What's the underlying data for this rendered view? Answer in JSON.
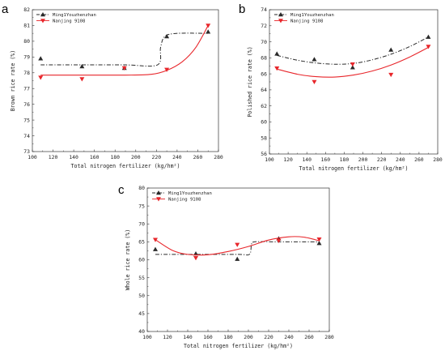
{
  "panels": [
    {
      "letter": "a",
      "xlabel": "Total nitrogen fertilizer (kg/hm²)",
      "ylabel": "Brown rice rate (%)",
      "legend": [
        "Ming1Youzhenzhan",
        "Nanjing 9108"
      ],
      "xticks": [
        "100",
        "120",
        "140",
        "160",
        "180",
        "200",
        "220",
        "240",
        "260",
        "280"
      ],
      "yticks": [
        "73",
        "74",
        "75",
        "76",
        "77",
        "78",
        "79",
        "80",
        "81",
        "82"
      ]
    },
    {
      "letter": "b",
      "xlabel": "Total nitrogen fertilizer (kg/hm²)",
      "ylabel": "Polished rice rate (%)",
      "legend": [
        "Ming1Youzhenzhan",
        "Nanjing 9108"
      ],
      "xticks": [
        "100",
        "120",
        "140",
        "160",
        "180",
        "200",
        "220",
        "240",
        "260",
        "280"
      ],
      "yticks": [
        "56",
        "58",
        "60",
        "62",
        "64",
        "66",
        "68",
        "70",
        "72",
        "74"
      ]
    },
    {
      "letter": "c",
      "xlabel": "Total nitrogen fertilizer (kg/hm²)",
      "ylabel": "Whole rice rate (%)",
      "legend": [
        "Ming1Youzhenzhan",
        "Nanjing 9108"
      ],
      "xticks": [
        "100",
        "120",
        "140",
        "160",
        "180",
        "200",
        "220",
        "240",
        "260",
        "280"
      ],
      "yticks": [
        "40",
        "45",
        "50",
        "55",
        "60",
        "65",
        "70",
        "75",
        "80"
      ]
    }
  ],
  "colors": {
    "ming": "#2a2a2a",
    "nanjing": "#e8262b"
  },
  "chart_data": [
    {
      "type": "line",
      "panel": "a",
      "xlim": [
        100,
        280
      ],
      "ylim": [
        73,
        82
      ],
      "x_label": "Total nitrogen fertilizer (kg/hm²)",
      "y_label": "Brown rice rate (%)",
      "series": [
        {
          "name": "Ming1Youzhenzhan",
          "marker": "triangle-up",
          "points": [
            [
              108,
              78.9
            ],
            [
              148,
              78.4
            ],
            [
              189,
              78.3
            ],
            [
              230,
              80.3
            ],
            [
              270,
              80.6
            ]
          ],
          "fit": [
            [
              108,
              78.5
            ],
            [
              150,
              78.5
            ],
            [
              190,
              78.5
            ],
            [
              221,
              78.5
            ],
            [
              224,
              79.6
            ],
            [
              228,
              80.3
            ],
            [
              240,
              80.5
            ],
            [
              270,
              80.5
            ]
          ]
        },
        {
          "name": "Nanjing 9108",
          "marker": "triangle-down",
          "points": [
            [
              108,
              77.7
            ],
            [
              148,
              77.6
            ],
            [
              189,
              78.3
            ],
            [
              230,
              78.2
            ],
            [
              270,
              81.0
            ]
          ],
          "fit": [
            [
              108,
              77.85
            ],
            [
              150,
              77.85
            ],
            [
              190,
              77.85
            ],
            [
              215,
              77.9
            ],
            [
              230,
              78.15
            ],
            [
              245,
              78.7
            ],
            [
              258,
              79.6
            ],
            [
              270,
              81.0
            ]
          ]
        }
      ]
    },
    {
      "type": "line",
      "panel": "b",
      "xlim": [
        100,
        280
      ],
      "ylim": [
        56,
        74
      ],
      "x_label": "Total nitrogen fertilizer (kg/hm²)",
      "y_label": "Polished rice rate (%)",
      "series": [
        {
          "name": "Ming1Youzhenzhan",
          "marker": "triangle-up",
          "points": [
            [
              108,
              68.5
            ],
            [
              148,
              67.8
            ],
            [
              189,
              66.8
            ],
            [
              230,
              69.0
            ],
            [
              270,
              70.6
            ]
          ],
          "fit": [
            [
              108,
              68.3
            ],
            [
              130,
              67.7
            ],
            [
              150,
              67.35
            ],
            [
              170,
              67.2
            ],
            [
              190,
              67.3
            ],
            [
              210,
              67.75
            ],
            [
              230,
              68.45
            ],
            [
              250,
              69.4
            ],
            [
              270,
              70.6
            ]
          ]
        },
        {
          "name": "Nanjing 9108",
          "marker": "triangle-down",
          "points": [
            [
              108,
              66.7
            ],
            [
              148,
              65.0
            ],
            [
              189,
              67.2
            ],
            [
              230,
              65.9
            ],
            [
              270,
              69.4
            ]
          ],
          "fit": [
            [
              108,
              66.6
            ],
            [
              130,
              65.95
            ],
            [
              150,
              65.65
            ],
            [
              170,
              65.6
            ],
            [
              190,
              65.85
            ],
            [
              210,
              66.35
            ],
            [
              230,
              67.1
            ],
            [
              250,
              68.1
            ],
            [
              270,
              69.3
            ]
          ]
        }
      ]
    },
    {
      "type": "line",
      "panel": "c",
      "xlim": [
        100,
        280
      ],
      "ylim": [
        40,
        80
      ],
      "x_label": "Total nitrogen fertilizer (kg/hm²)",
      "y_label": "Whole rice rate (%)",
      "series": [
        {
          "name": "Ming1Youzhenzhan",
          "marker": "triangle-up",
          "points": [
            [
              108,
              62.9
            ],
            [
              148,
              61.7
            ],
            [
              189,
              60.2
            ],
            [
              230,
              65.9
            ],
            [
              270,
              64.6
            ]
          ],
          "fit": [
            [
              108,
              61.5
            ],
            [
              150,
              61.5
            ],
            [
              190,
              61.5
            ],
            [
              201,
              61.5
            ],
            [
              203,
              64.0
            ],
            [
              206,
              65.0
            ],
            [
              230,
              65.0
            ],
            [
              270,
              65.0
            ]
          ]
        },
        {
          "name": "Nanjing 9108",
          "marker": "triangle-down",
          "points": [
            [
              108,
              65.6
            ],
            [
              148,
              60.5
            ],
            [
              189,
              64.2
            ],
            [
              230,
              65.3
            ],
            [
              270,
              65.7
            ]
          ],
          "fit": [
            [
              108,
              65.6
            ],
            [
              125,
              62.6
            ],
            [
              140,
              61.5
            ],
            [
              160,
              61.4
            ],
            [
              180,
              62.3
            ],
            [
              200,
              63.7
            ],
            [
              220,
              65.5
            ],
            [
              240,
              66.4
            ],
            [
              255,
              66.3
            ],
            [
              270,
              65.3
            ]
          ]
        }
      ]
    }
  ]
}
